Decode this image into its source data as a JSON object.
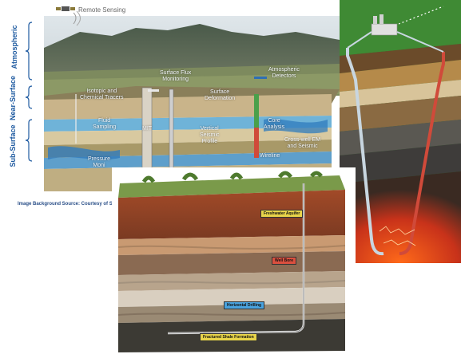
{
  "monitoring_diagram": {
    "remote_sensing": "Remote Sensing",
    "zones": {
      "atmospheric": "Atmospheric",
      "near_surface": "Near-Surface",
      "sub_surface": "Sub-Surface"
    },
    "labels": {
      "isotopic_tracers": "Isotopic and\nChemical Tracers",
      "surface_flux": "Surface Flux\nMonitoring",
      "atmospheric_detectors": "Atmospheric\nDetectors",
      "surface_deformation": "Surface\nDeformation",
      "fluid_sampling": "Fluid\nSampling",
      "mit": "MIT",
      "vertical_seismic": "Vertical\nSeismic\nProfile",
      "core_analysis": "Core\nAnalysis",
      "crosswell": "Cross-well EM\nand Seismic",
      "pressure_monitoring": "Pressure\nMoni",
      "wireline": "Wireline"
    },
    "source": "Image Background Source: Courtesy of Sc"
  },
  "fracking_diagram": {
    "freshwater_aquifer": "Freshwater Aquifer",
    "well_bore": "Well Bore",
    "horizontal_drilling": "Horizontal Drilling",
    "fractured_shale": "Fractured Shale Formation"
  },
  "colors": {
    "label_yellow": "#e8d44a",
    "label_red": "#d9503f",
    "label_blue": "#4aa3df",
    "zone_blue": "#1e5aa0"
  }
}
